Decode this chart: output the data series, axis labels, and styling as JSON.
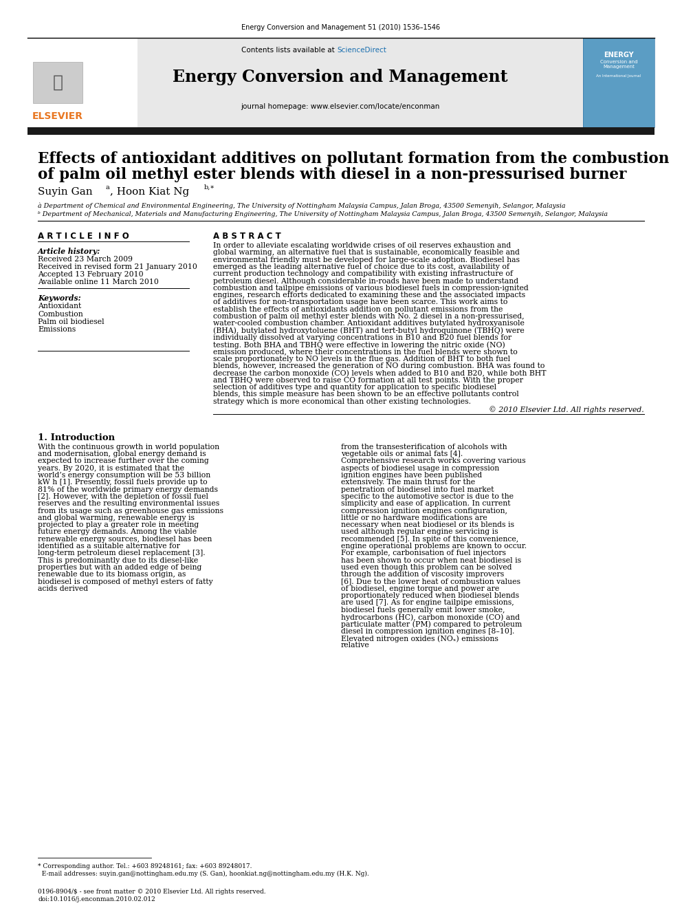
{
  "journal_ref": "Energy Conversion and Management 51 (2010) 1536–1546",
  "journal_title": "Energy Conversion and Management",
  "journal_homepage": "journal homepage: www.elsevier.com/locate/enconman",
  "paper_title_line1": "Effects of antioxidant additives on pollutant formation from the combustion",
  "paper_title_line2": "of palm oil methyl ester blends with diesel in a non-pressurised burner",
  "affiliation_a": "à Department of Chemical and Environmental Engineering, The University of Nottingham Malaysia Campus, Jalan Broga, 43500 Semenyih, Selangor, Malaysia",
  "affiliation_b": "ᵇ Department of Mechanical, Materials and Manufacturing Engineering, The University of Nottingham Malaysia Campus, Jalan Broga, 43500 Semenyih, Selangor, Malaysia",
  "article_info_header": "A R T I C L E  I N F O",
  "article_history_header": "Article history:",
  "received": "Received 23 March 2009",
  "received_revised": "Received in revised form 21 January 2010",
  "accepted": "Accepted 13 February 2010",
  "available_online": "Available online 11 March 2010",
  "keywords_header": "Keywords:",
  "keywords": [
    "Antioxidant",
    "Combustion",
    "Palm oil biodiesel",
    "Emissions"
  ],
  "abstract_header": "A B S T R A C T",
  "abstract_text": "In order to alleviate escalating worldwide crises of oil reserves exhaustion and global warming, an alternative fuel that is sustainable, economically feasible and environmental friendly must be developed for large-scale adoption. Biodiesel has emerged as the leading alternative fuel of choice due to its cost, availability of current production technology and compatibility with existing infrastructure of petroleum diesel. Although considerable in-roads have been made to understand combustion and tailpipe emissions of various biodiesel fuels in compression-ignited engines, research efforts dedicated to examining these and the associated impacts of additives for non-transportation usage have been scarce. This work aims to establish the effects of antioxidants addition on pollutant emissions from the combustion of palm oil methyl ester blends with No. 2 diesel in a non-pressurised, water-cooled combustion chamber. Antioxidant additives butylated hydroxyanisole (BHA), butylated hydroxytoluene (BHT) and tert-butyl hydroquinone (TBHQ) were individually dissolved at varying concentrations in B10 and B20 fuel blends for testing. Both BHA and TBHQ were effective in lowering the nitric oxide (NO) emission produced, where their concentrations in the fuel blends were shown to scale proportionately to NO levels in the flue gas. Addition of BHT to both fuel blends, however, increased the generation of NO during combustion. BHA was found to decrease the carbon monoxide (CO) levels when added to B10 and B20, while both BHT and TBHQ were observed to raise CO formation at all test points. With the proper selection of additives type and quantity for application to specific biodiesel blends, this simple measure has been shown to be an effective pollutants control strategy which is more economical than other existing technologies.",
  "copyright": "© 2010 Elsevier Ltd. All rights reserved.",
  "intro_header": "1. Introduction",
  "intro_col1": "    With the continuous growth in world population and modernisation, global energy demand is expected to increase further over the coming years. By 2020, it is estimated that the world’s energy consumption will be 53 billion kW h [1]. Presently, fossil fuels provide up to 81% of the worldwide primary energy demands [2]. However, with the depletion of fossil fuel reserves and the resulting environmental issues from its usage such as greenhouse gas emissions and global warming, renewable energy is projected to play a greater role in meeting future energy demands. Among the viable renewable energy sources, biodiesel has been identified as a suitable alternative for long-term petroleum diesel replacement [3]. This is predominantly due to its diesel-like properties but with an added edge of being renewable due to its biomass origin, as biodiesel is composed of methyl esters of fatty acids derived",
  "intro_col2_p1": "from the transesterification of alcohols with vegetable oils or animal fats [4].",
  "intro_col2_p2": "    Comprehensive research works covering various aspects of biodiesel usage in compression ignition engines have been published extensively. The main thrust for the penetration of biodiesel into fuel market specific to the automotive sector is due to the simplicity and ease of application. In current compression ignition engines configuration, little or no hardware modifications are necessary when neat biodiesel or its blends is used although regular engine servicing is recommended [5]. In spite of this convenience, engine operational problems are known to occur. For example, carbonisation of fuel injectors has been shown to occur when neat biodiesel is used even though this problem can be solved through the addition of viscosity improvers [6]. Due to the lower heat of combustion values of biodiesel, engine torque and power are proportionately reduced when biodiesel blends are used [7]. As for engine tailpipe emissions, biodiesel fuels generally emit lower smoke, hydrocarbons (HC), carbon monoxide (CO) and particulate matter (PM) compared to petroleum diesel in compression ignition engines [8–10]. Elevated nitrogen oxides (NOₓ) emissions relative",
  "footnote_line1": "* Corresponding author. Tel.: +603 89248161; fax: +603 89248017.",
  "footnote_line2": "  E-mail addresses: suyin.gan@nottingham.edu.my (S. Gan), hoonkiat.ng@nottingham.edu.my (H.K. Ng).",
  "issn_line1": "0196-8904/$ - see front matter © 2010 Elsevier Ltd. All rights reserved.",
  "issn_line2": "doi:10.1016/j.enconman.2010.02.012",
  "bg_color": "#ffffff",
  "header_bg": "#e8e8e8",
  "black_bar_color": "#1a1a1a",
  "elsevier_orange": "#e87722",
  "sciencedirect_blue": "#1a6faf"
}
